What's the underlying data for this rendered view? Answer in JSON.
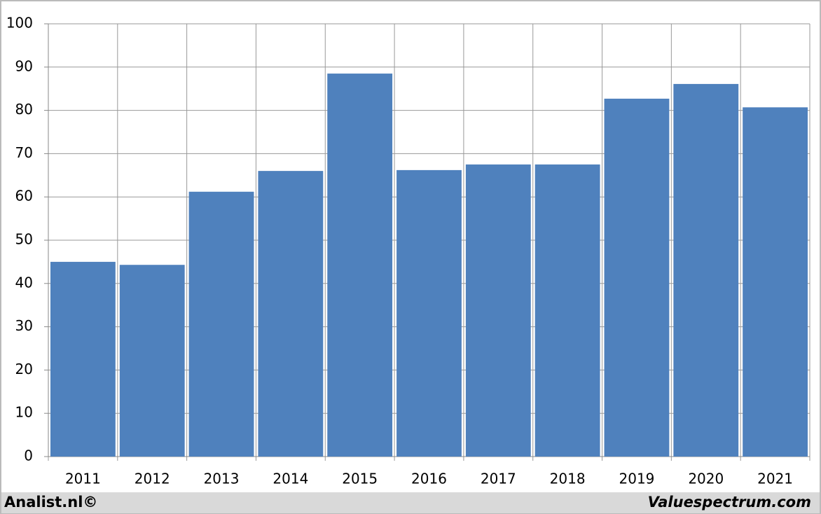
{
  "chart_data": {
    "type": "bar",
    "categories": [
      "2011",
      "2012",
      "2013",
      "2014",
      "2015",
      "2016",
      "2017",
      "2018",
      "2019",
      "2020",
      "2021"
    ],
    "values": [
      45.0,
      44.3,
      61.2,
      66.0,
      88.5,
      66.2,
      67.5,
      67.5,
      82.7,
      86.1,
      80.7
    ],
    "color": "#4f81bd",
    "ylim": [
      0,
      100
    ],
    "yticks": [
      0,
      10,
      20,
      30,
      40,
      50,
      60,
      70,
      80,
      90,
      100
    ],
    "grid": true
  },
  "footer": {
    "left": "Analist.nl©",
    "right": "Valuespectrum.com"
  }
}
